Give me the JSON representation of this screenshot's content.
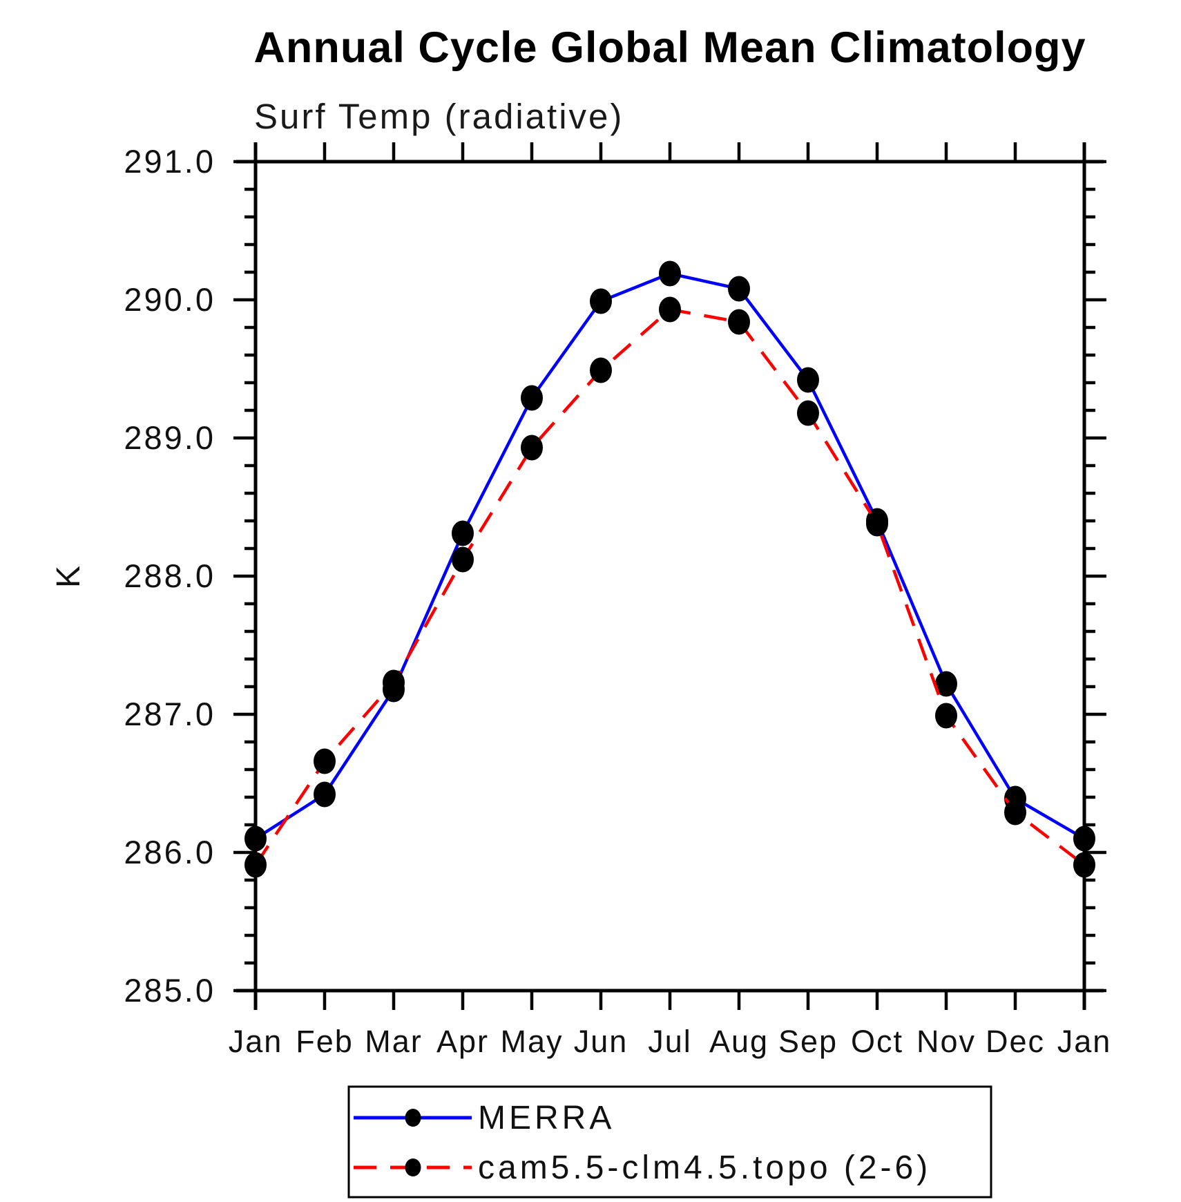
{
  "page": {
    "title": "Annual Cycle Global Mean Climatology",
    "subtitle": "Surf Temp (radiative)",
    "y_axis_title": "K"
  },
  "colors": {
    "merra_line": "#0000ff",
    "cam_line": "#ff0000",
    "marker": "#000000",
    "axis": "#000000"
  },
  "legend": {
    "entries": [
      {
        "label": "MERRA"
      },
      {
        "label": "cam5.5-clm4.5.topo (2-6)"
      }
    ]
  },
  "chart_data": {
    "type": "line",
    "title": "Annual Cycle Global Mean Climatology",
    "subtitle": "Surf Temp (radiative)",
    "ylabel": "K",
    "xlabel": "",
    "ylim": [
      285.0,
      291.0
    ],
    "ytick_major_step": 1.0,
    "ytick_minor_step": 0.2,
    "ytick_labels": [
      "285.0",
      "286.0",
      "287.0",
      "288.0",
      "289.0",
      "290.0",
      "291.0"
    ],
    "grid": false,
    "legend_position": "bottom",
    "categories": [
      "Jan",
      "Feb",
      "Mar",
      "Apr",
      "May",
      "Jun",
      "Jul",
      "Aug",
      "Sep",
      "Oct",
      "Nov",
      "Dec",
      "Jan"
    ],
    "series": [
      {
        "name": "MERRA",
        "style": "solid",
        "color": "#0000ff",
        "marker": "filled-circle",
        "values": [
          286.1,
          286.42,
          287.18,
          288.31,
          289.29,
          289.99,
          290.19,
          290.08,
          289.42,
          288.4,
          287.22,
          286.39,
          286.1
        ]
      },
      {
        "name": "cam5.5-clm4.5.topo (2-6)",
        "style": "dashed",
        "color": "#ff0000",
        "marker": "filled-circle",
        "values": [
          285.91,
          286.66,
          287.23,
          288.12,
          288.93,
          289.49,
          289.93,
          289.84,
          289.18,
          288.38,
          286.99,
          286.29,
          285.91
        ]
      }
    ]
  }
}
